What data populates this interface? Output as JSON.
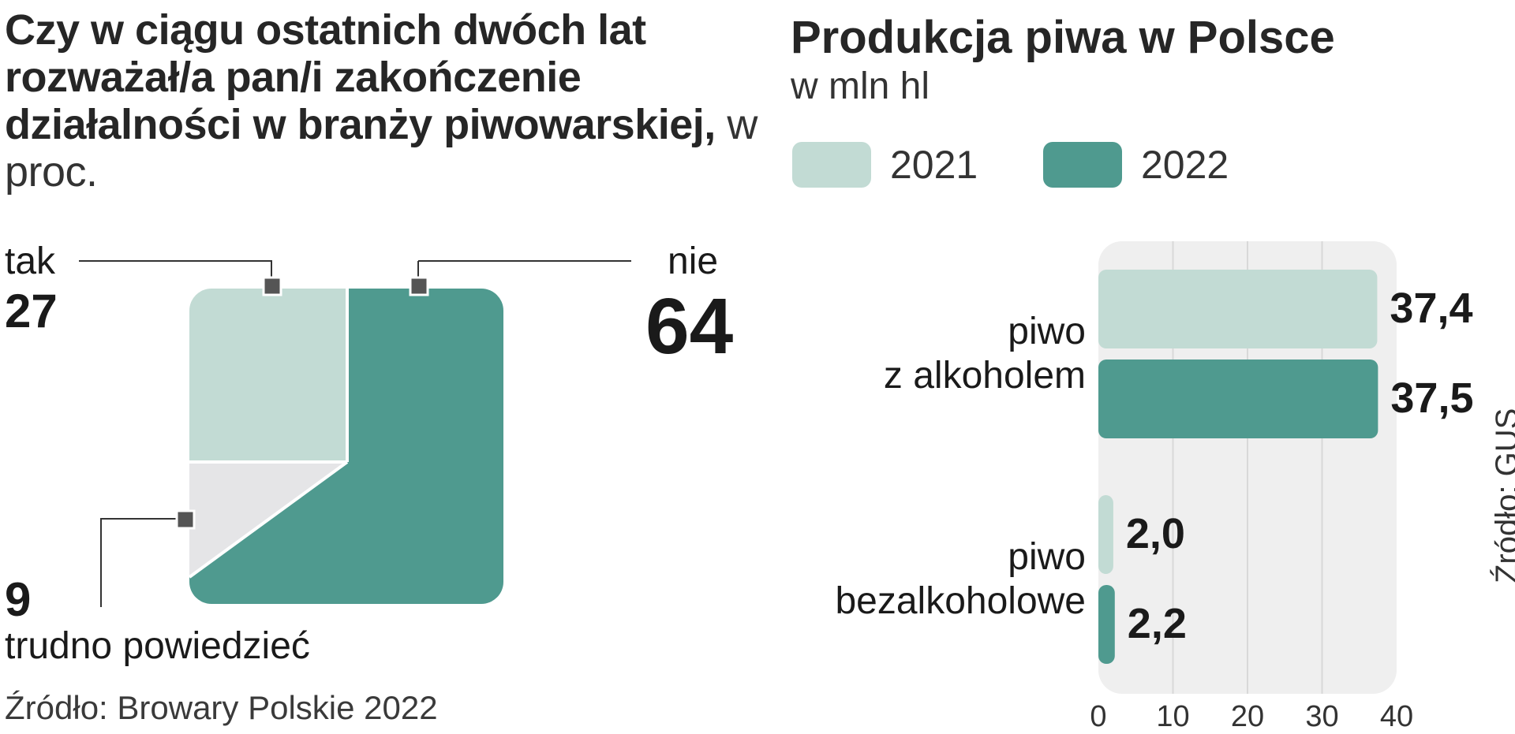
{
  "left_chart": {
    "title": "Czy w ciągu ostatnich dwóch lat rozważał/a pan/i zakończenie działalności w branży piwowarskiej,",
    "unit": "w proc.",
    "source": "Źródło: Browary Polskie 2022",
    "colors": {
      "tak": "#c2dbd4",
      "nie": "#4f9a8f",
      "trudno": "#e5e5e7",
      "marker": "#555555"
    }
  },
  "right_chart": {
    "title": "Produkcja piwa w Polsce",
    "unit": "w mln hl",
    "source": "Źródło: GUS",
    "colors": {
      "2021": "#c2dbd4",
      "2022": "#4f9a8f",
      "panel": "#efefef",
      "grid": "#d8d8d8"
    }
  },
  "chart_data": [
    {
      "type": "pie",
      "title": "Czy w ciągu ostatnich dwóch lat rozważał/a pan/i zakończenie działalności w branży piwowarskiej, w proc.",
      "slices": [
        {
          "label": "tak",
          "value": 27,
          "display": "27"
        },
        {
          "label": "nie",
          "value": 64,
          "display": "64"
        },
        {
          "label": "trudno powiedzieć",
          "value": 9,
          "display": "9"
        }
      ]
    },
    {
      "type": "bar",
      "orientation": "horizontal",
      "title": "Produkcja piwa w Polsce",
      "ylabel": "w mln hl",
      "categories": [
        "piwo z alkoholem",
        "piwo bezalkoholowe"
      ],
      "category_lines": [
        [
          "piwo",
          "z alkoholem"
        ],
        [
          "piwo",
          "bezalkoholowe"
        ]
      ],
      "series": [
        {
          "name": "2021",
          "values": [
            37.4,
            2.0
          ],
          "labels": [
            "37,4",
            "2,0"
          ]
        },
        {
          "name": "2022",
          "values": [
            37.5,
            2.2
          ],
          "labels": [
            "37,5",
            "2,2"
          ]
        }
      ],
      "xlim": [
        0,
        40
      ],
      "xticks": [
        "0",
        "10",
        "20",
        "30",
        "40"
      ],
      "grid": true,
      "legend": "top-left"
    }
  ]
}
